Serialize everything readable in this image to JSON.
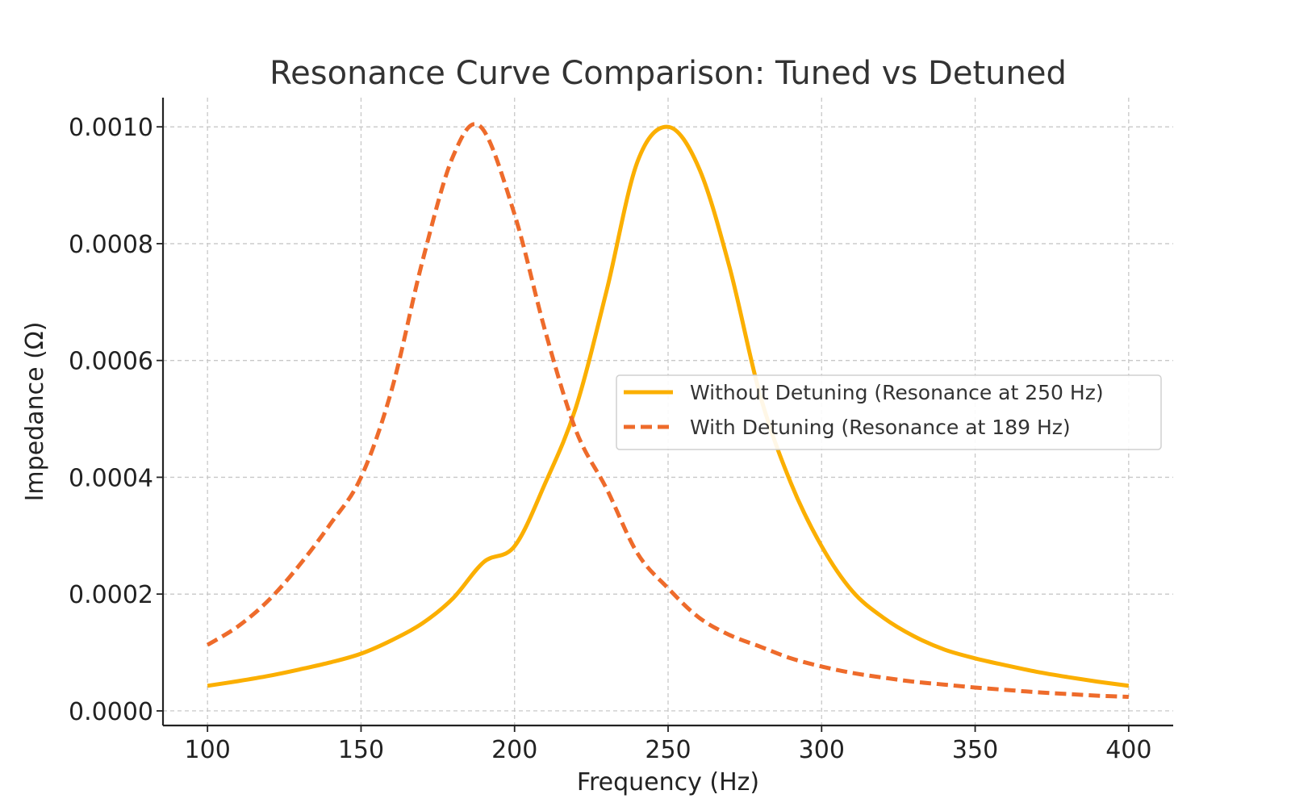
{
  "chart_data": {
    "type": "line",
    "title": "Resonance Curve Comparison: Tuned vs Detuned",
    "xlabel": "Frequency (Hz)",
    "ylabel": "Impedance (Ω)",
    "xlim": [
      85.5,
      414.5
    ],
    "ylim": [
      -2.5e-05,
      0.00105
    ],
    "x_ticks": [
      100,
      150,
      200,
      250,
      300,
      350,
      400
    ],
    "y_ticks": [
      0.0,
      0.0002,
      0.0004,
      0.0006,
      0.0008,
      0.001
    ],
    "x_tick_labels": [
      "100",
      "150",
      "200",
      "250",
      "300",
      "350",
      "400"
    ],
    "y_tick_labels": [
      "0.0000",
      "0.0002",
      "0.0004",
      "0.0006",
      "0.0008",
      "0.0010"
    ],
    "grid": true,
    "legend_position": "center-right",
    "series": [
      {
        "name": "Without Detuning (Resonance at 250 Hz)",
        "color": "#FBAF00",
        "style": "solid",
        "x": [
          100,
          110,
          120,
          130,
          140,
          150,
          160,
          170,
          180,
          190,
          200,
          210,
          220,
          230,
          240,
          250,
          260,
          270,
          280,
          290,
          300,
          310,
          320,
          330,
          340,
          350,
          360,
          370,
          380,
          390,
          400
        ],
        "y": [
          4.3e-05,
          5.1e-05,
          6e-05,
          7.1e-05,
          8.3e-05,
          9.8e-05,
          0.000121,
          0.00015,
          0.000193,
          0.000255,
          0.000282,
          0.00039,
          0.00052,
          0.00072,
          0.00094,
          0.001,
          0.00093,
          0.00076,
          0.00054,
          0.00039,
          0.000282,
          0.000205,
          0.00016,
          0.000128,
          0.000105,
          9e-05,
          7.8e-05,
          6.7e-05,
          5.8e-05,
          5e-05,
          4.3e-05
        ]
      },
      {
        "name": "With Detuning (Resonance at 189 Hz)",
        "color": "#EE6B2B",
        "style": "dashed",
        "x": [
          100,
          110,
          120,
          130,
          140,
          150,
          160,
          170,
          180,
          189,
          200,
          210,
          220,
          230,
          240,
          250,
          260,
          270,
          280,
          290,
          300,
          310,
          320,
          330,
          340,
          350,
          360,
          370,
          380,
          390,
          400
        ],
        "y": [
          0.000113,
          0.000145,
          0.00019,
          0.00025,
          0.00032,
          0.0004,
          0.00055,
          0.00077,
          0.00095,
          0.001,
          0.00085,
          0.00065,
          0.00048,
          0.00038,
          0.00027,
          0.00021,
          0.00016,
          0.00013,
          0.00011,
          9e-05,
          7.6e-05,
          6.5e-05,
          5.7e-05,
          5e-05,
          4.5e-05,
          4e-05,
          3.6e-05,
          3.2e-05,
          2.9e-05,
          2.6e-05,
          2.4e-05
        ]
      }
    ]
  }
}
